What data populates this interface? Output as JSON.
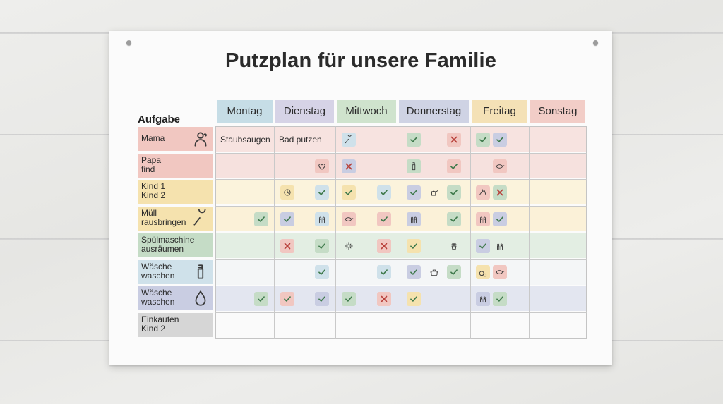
{
  "title": "Putzplan für unsere Familie",
  "task_header": "Aufgabe",
  "days": [
    {
      "label": "Montag",
      "color": "#c6dde6"
    },
    {
      "label": "Dienstag",
      "color": "#d6d3e6"
    },
    {
      "label": "Mittwoch",
      "color": "#cfe3cd"
    },
    {
      "label": "Donnerstag",
      "color": "#cfd3e4"
    },
    {
      "label": "Freitag",
      "color": "#f4e1b6"
    },
    {
      "label": "Sonstag",
      "color": "#f2cdc7"
    }
  ],
  "tasks": [
    {
      "line1": "Mama",
      "line2": "",
      "color": "#f1c7c1",
      "row_color": "#f7e3e0",
      "icon": "person-icon"
    },
    {
      "line1": "Papa",
      "line2": "find",
      "color": "#f1c7c1",
      "row_color": "#f6e1de",
      "icon": ""
    },
    {
      "line1": "Kind 1",
      "line2": "Kind 2",
      "color": "#f5e2ae",
      "row_color": "#fbf3dc",
      "icon": ""
    },
    {
      "line1": "Müll",
      "line2": "rausbringen",
      "color": "#f5e2ae",
      "row_color": "#fbf1d8",
      "icon": "brush-icon"
    },
    {
      "line1": "Spülmaschine",
      "line2": "ausräumen",
      "color": "#c5dcc6",
      "row_color": "#e3eee3",
      "icon": ""
    },
    {
      "line1": "Wäsche",
      "line2": "waschen",
      "color": "#cfe1ea",
      "row_color": "#f4f6f7",
      "icon": "bottle-icon"
    },
    {
      "line1": "Wäsche",
      "line2": "waschen",
      "color": "#c9cde2",
      "row_color": "#e3e6f0",
      "icon": "drop-icon"
    },
    {
      "line1": "Einkaufen",
      "line2": "Kind 2",
      "color": "#d6d6d6",
      "row_color": "#fafafa",
      "icon": ""
    }
  ],
  "cell_texts": [
    {
      "row": 0,
      "col": 0,
      "text": "Staubsaugen"
    },
    {
      "row": 0,
      "col": 1,
      "text": "Bad putzen"
    }
  ],
  "marks": [
    {
      "row": 0,
      "col": 2,
      "pos": 0,
      "kind": "brush",
      "bg": "#cfe1ea"
    },
    {
      "row": 0,
      "col": 3,
      "pos": 0,
      "kind": "check",
      "bg": "#c5dcc6"
    },
    {
      "row": 0,
      "col": 3,
      "pos": 2,
      "kind": "cross",
      "bg": "#f1c7c1"
    },
    {
      "row": 0,
      "col": 4,
      "pos": 0,
      "kind": "check",
      "bg": "#c5dcc6"
    },
    {
      "row": 0,
      "col": 4,
      "pos": 1,
      "kind": "check",
      "bg": "#c9cde2"
    },
    {
      "row": 1,
      "col": 1,
      "pos": 2,
      "kind": "heart",
      "bg": "#f1c7c1"
    },
    {
      "row": 1,
      "col": 2,
      "pos": 0,
      "kind": "cross",
      "bg": "#c9cde2"
    },
    {
      "row": 1,
      "col": 3,
      "pos": 0,
      "kind": "bottle",
      "bg": "#c5dcc6"
    },
    {
      "row": 1,
      "col": 3,
      "pos": 2,
      "kind": "check",
      "bg": "#f1c7c1"
    },
    {
      "row": 1,
      "col": 4,
      "pos": 1,
      "kind": "pan",
      "bg": "#f1c7c1"
    },
    {
      "row": 2,
      "col": 1,
      "pos": 0,
      "kind": "clock",
      "bg": "#f5e2ae"
    },
    {
      "row": 2,
      "col": 1,
      "pos": 2,
      "kind": "check",
      "bg": "#cfe1ea"
    },
    {
      "row": 2,
      "col": 2,
      "pos": 0,
      "kind": "check",
      "bg": "#f5e2ae"
    },
    {
      "row": 2,
      "col": 2,
      "pos": 2,
      "kind": "check",
      "bg": "#cfe1ea"
    },
    {
      "row": 2,
      "col": 3,
      "pos": 0,
      "kind": "check",
      "bg": "#c9cde2"
    },
    {
      "row": 2,
      "col": 3,
      "pos": 1,
      "kind": "watering",
      "bg": "transparent"
    },
    {
      "row": 2,
      "col": 3,
      "pos": 2,
      "kind": "check",
      "bg": "#c5dcc6"
    },
    {
      "row": 2,
      "col": 4,
      "pos": 0,
      "kind": "iron",
      "bg": "#f1c7c1"
    },
    {
      "row": 2,
      "col": 4,
      "pos": 1,
      "kind": "cross",
      "bg": "#c5dcc6"
    },
    {
      "row": 3,
      "col": 0,
      "pos": 2,
      "kind": "check",
      "bg": "#c5dcc6"
    },
    {
      "row": 3,
      "col": 1,
      "pos": 0,
      "kind": "check",
      "bg": "#c9cde2"
    },
    {
      "row": 3,
      "col": 1,
      "pos": 2,
      "kind": "people",
      "bg": "#cfe1ea"
    },
    {
      "row": 3,
      "col": 2,
      "pos": 0,
      "kind": "pan",
      "bg": "#f1c7c1"
    },
    {
      "row": 3,
      "col": 2,
      "pos": 2,
      "kind": "check",
      "bg": "#f1c7c1"
    },
    {
      "row": 3,
      "col": 3,
      "pos": 0,
      "kind": "people",
      "bg": "#c9cde2"
    },
    {
      "row": 3,
      "col": 3,
      "pos": 2,
      "kind": "check",
      "bg": "#c5dcc6"
    },
    {
      "row": 3,
      "col": 4,
      "pos": 0,
      "kind": "people",
      "bg": "#f1c7c1"
    },
    {
      "row": 3,
      "col": 4,
      "pos": 1,
      "kind": "check",
      "bg": "#c9cde2"
    },
    {
      "row": 4,
      "col": 1,
      "pos": 0,
      "kind": "cross",
      "bg": "#f1c7c1"
    },
    {
      "row": 4,
      "col": 1,
      "pos": 2,
      "kind": "check",
      "bg": "#c5dcc6"
    },
    {
      "row": 4,
      "col": 2,
      "pos": 0,
      "kind": "sparkle",
      "bg": "transparent"
    },
    {
      "row": 4,
      "col": 2,
      "pos": 2,
      "kind": "cross",
      "bg": "#f1c7c1"
    },
    {
      "row": 4,
      "col": 3,
      "pos": 0,
      "kind": "check",
      "bg": "#f5e2ae"
    },
    {
      "row": 4,
      "col": 3,
      "pos": 2,
      "kind": "plant",
      "bg": "transparent"
    },
    {
      "row": 4,
      "col": 4,
      "pos": 0,
      "kind": "check",
      "bg": "#c9cde2"
    },
    {
      "row": 4,
      "col": 4,
      "pos": 1,
      "kind": "people",
      "bg": "transparent"
    },
    {
      "row": 5,
      "col": 1,
      "pos": 2,
      "kind": "check",
      "bg": "#cfe1ea"
    },
    {
      "row": 5,
      "col": 2,
      "pos": 2,
      "kind": "check",
      "bg": "#cfe1ea"
    },
    {
      "row": 5,
      "col": 3,
      "pos": 0,
      "kind": "check",
      "bg": "#c9cde2"
    },
    {
      "row": 5,
      "col": 3,
      "pos": 1,
      "kind": "pot",
      "bg": "transparent"
    },
    {
      "row": 5,
      "col": 3,
      "pos": 2,
      "kind": "check",
      "bg": "#c5dcc6"
    },
    {
      "row": 5,
      "col": 4,
      "pos": 0,
      "kind": "bubble",
      "bg": "#f5e2ae"
    },
    {
      "row": 5,
      "col": 4,
      "pos": 1,
      "kind": "pan",
      "bg": "#f1c7c1"
    },
    {
      "row": 6,
      "col": 0,
      "pos": 2,
      "kind": "check",
      "bg": "#c5dcc6"
    },
    {
      "row": 6,
      "col": 1,
      "pos": 0,
      "kind": "check",
      "bg": "#f1c7c1"
    },
    {
      "row": 6,
      "col": 1,
      "pos": 2,
      "kind": "check",
      "bg": "#c9cde2"
    },
    {
      "row": 6,
      "col": 2,
      "pos": 0,
      "kind": "check",
      "bg": "#c5dcc6"
    },
    {
      "row": 6,
      "col": 2,
      "pos": 2,
      "kind": "cross",
      "bg": "#f1c7c1"
    },
    {
      "row": 6,
      "col": 3,
      "pos": 0,
      "kind": "check",
      "bg": "#f5e2ae"
    },
    {
      "row": 6,
      "col": 4,
      "pos": 0,
      "kind": "people",
      "bg": "#c9cde2"
    },
    {
      "row": 6,
      "col": 4,
      "pos": 1,
      "kind": "check",
      "bg": "#c5dcc6"
    }
  ]
}
